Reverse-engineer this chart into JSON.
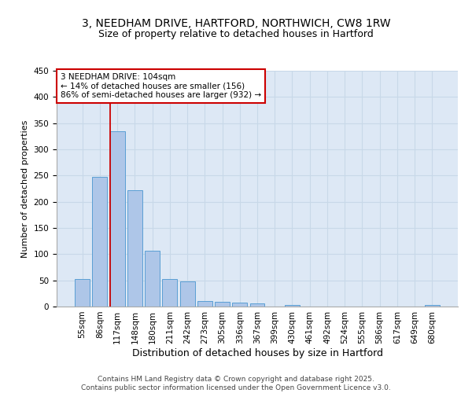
{
  "title_line1": "3, NEEDHAM DRIVE, HARTFORD, NORTHWICH, CW8 1RW",
  "title_line2": "Size of property relative to detached houses in Hartford",
  "xlabel": "Distribution of detached houses by size in Hartford",
  "ylabel": "Number of detached properties",
  "categories": [
    "55sqm",
    "86sqm",
    "117sqm",
    "148sqm",
    "180sqm",
    "211sqm",
    "242sqm",
    "273sqm",
    "305sqm",
    "336sqm",
    "367sqm",
    "399sqm",
    "430sqm",
    "461sqm",
    "492sqm",
    "524sqm",
    "555sqm",
    "586sqm",
    "617sqm",
    "649sqm",
    "680sqm"
  ],
  "values": [
    53,
    247,
    335,
    222,
    107,
    52,
    48,
    10,
    9,
    7,
    6,
    0,
    3,
    0,
    0,
    0,
    0,
    0,
    0,
    0,
    3
  ],
  "bar_color": "#aec6e8",
  "bar_edge_color": "#5a9fd4",
  "grid_color": "#c8d8e8",
  "background_color": "#dde8f5",
  "vline_color": "#cc0000",
  "annotation_box_text": "3 NEEDHAM DRIVE: 104sqm\n← 14% of detached houses are smaller (156)\n86% of semi-detached houses are larger (932) →",
  "annotation_fontsize": 7.5,
  "title_fontsize": 10,
  "subtitle_fontsize": 9,
  "xlabel_fontsize": 9,
  "ylabel_fontsize": 8,
  "tick_fontsize": 7.5,
  "footer_text": "Contains HM Land Registry data © Crown copyright and database right 2025.\nContains public sector information licensed under the Open Government Licence v3.0.",
  "ylim": [
    0,
    450
  ],
  "yticks": [
    0,
    50,
    100,
    150,
    200,
    250,
    300,
    350,
    400,
    450
  ],
  "vline_pos": 1.57
}
